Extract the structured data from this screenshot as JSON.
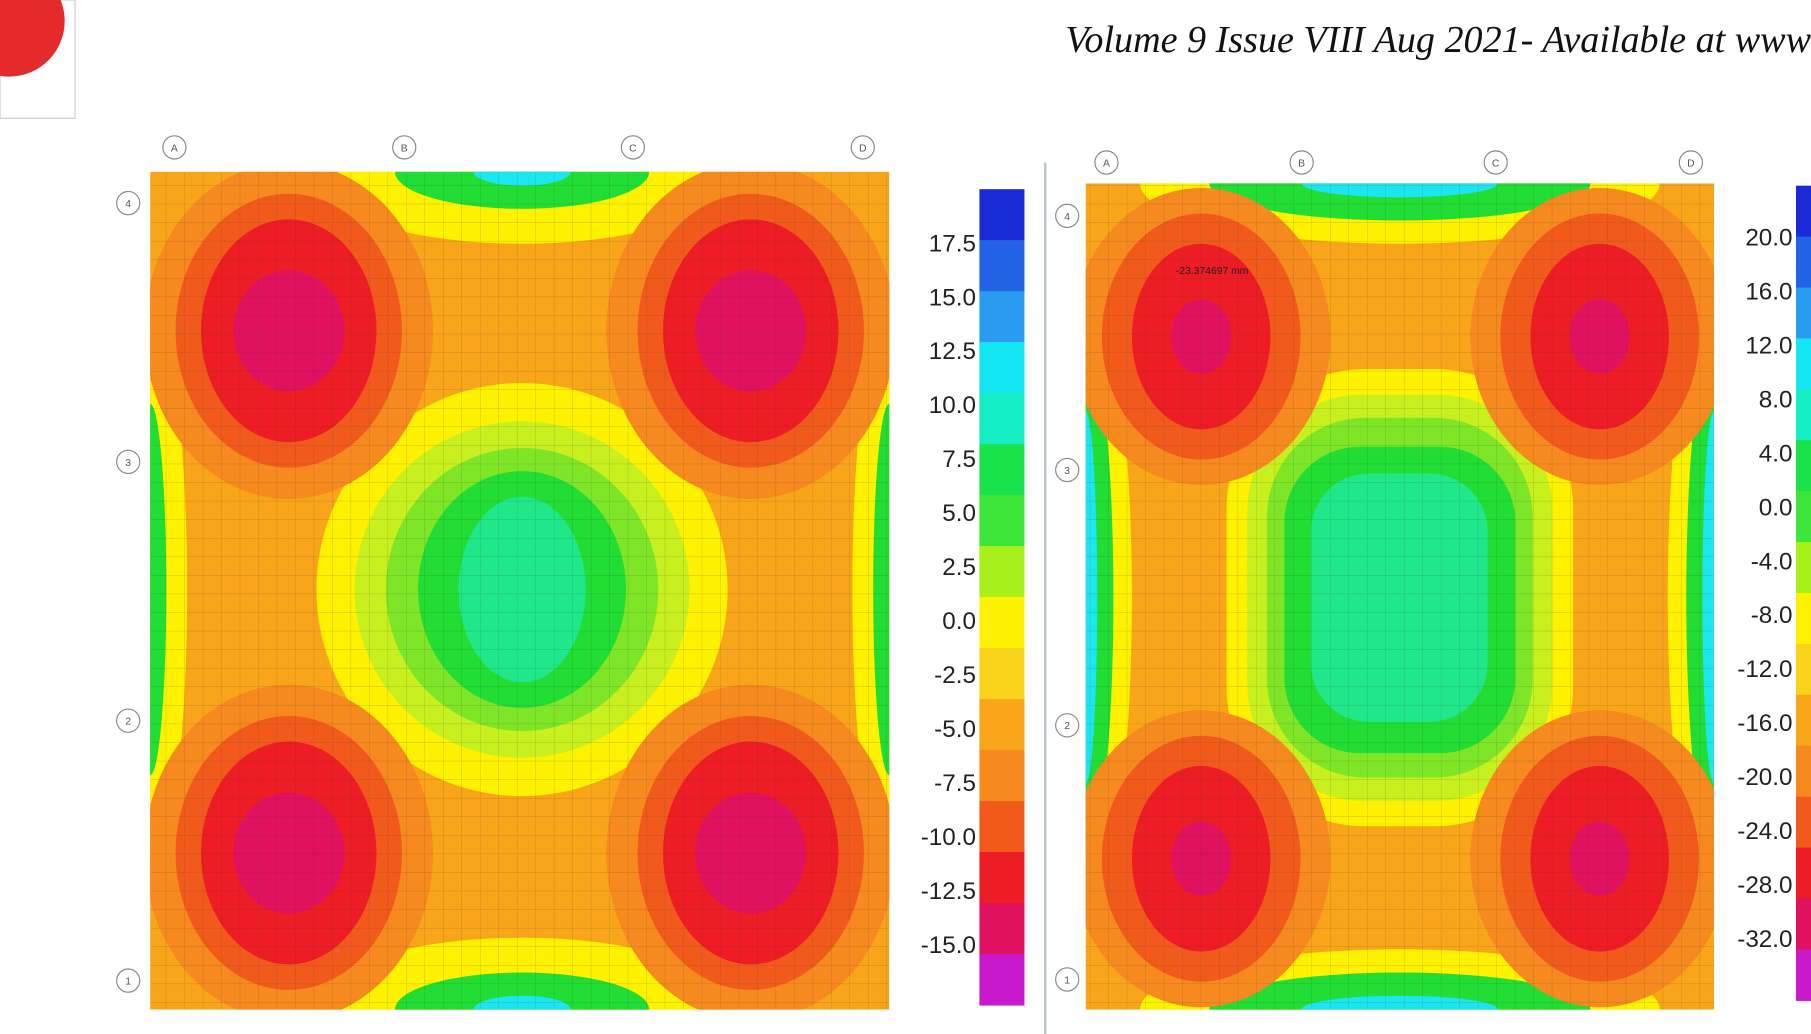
{
  "header": {
    "journal_line": "Volume 9 Issue VIII Aug 2021- Available at www"
  },
  "figures": [
    {
      "grid_columns": [
        "A",
        "B",
        "C",
        "D"
      ],
      "grid_rows": [
        "4",
        "3",
        "2",
        "1"
      ],
      "legend_labels": [
        "17.5",
        "15.0",
        "12.5",
        "10.0",
        "7.5",
        "5.0",
        "2.5",
        "0.0",
        "-2.5",
        "-5.0",
        "-7.5",
        "-10.0",
        "-12.5",
        "-15.0"
      ]
    },
    {
      "grid_columns": [
        "A",
        "B",
        "C",
        "D"
      ],
      "grid_rows": [
        "4",
        "3",
        "2",
        "1"
      ],
      "legend_labels": [
        "20.0",
        "16.0",
        "12.0",
        "8.0",
        "4.0",
        "0.0",
        "-4.0",
        "-8.0",
        "-12.0",
        "-16.0",
        "-20.0",
        "-24.0",
        "-28.0",
        "-32.0"
      ],
      "annotation": "-23.374697 mm"
    }
  ]
}
